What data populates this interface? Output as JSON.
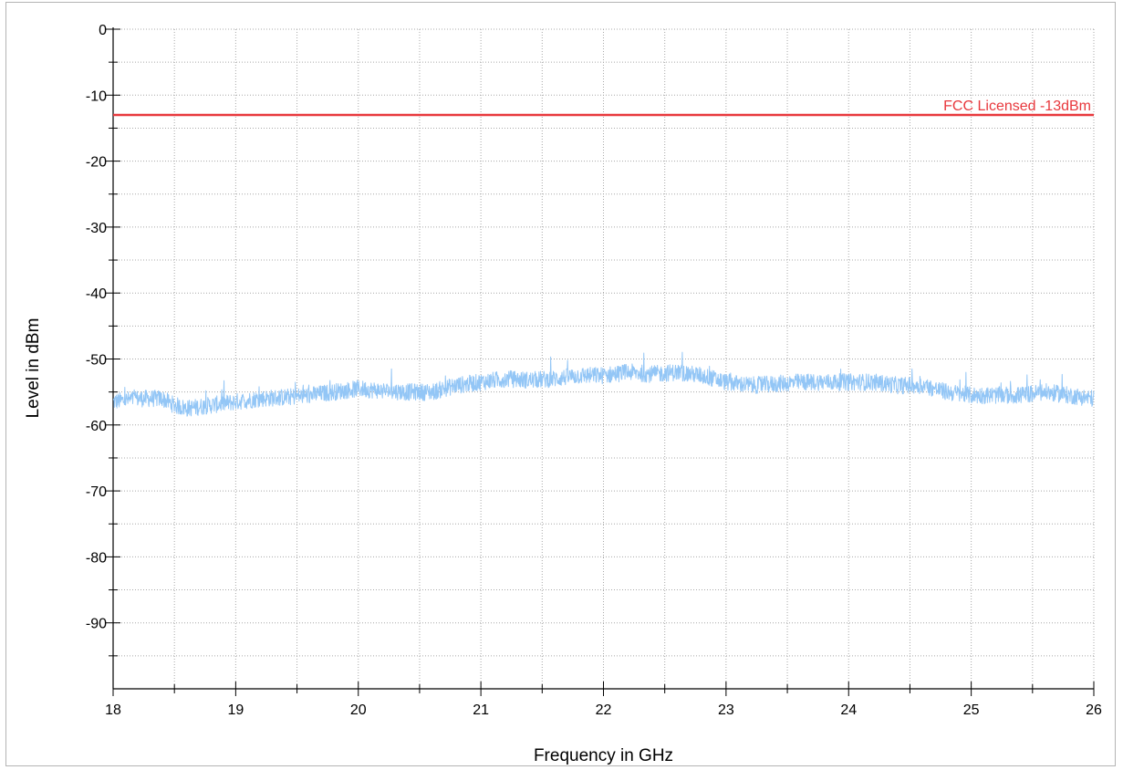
{
  "chart_data": {
    "type": "line",
    "xlabel": "Frequency in GHz",
    "ylabel": "Level in dBm",
    "xlim": [
      18,
      26
    ],
    "ylim": [
      -100,
      0
    ],
    "x_ticks": [
      18,
      19,
      20,
      21,
      22,
      23,
      24,
      25,
      26
    ],
    "y_ticks": [
      0,
      -10,
      -20,
      -30,
      -40,
      -50,
      -60,
      -70,
      -80,
      -90
    ],
    "x_tick_labels": [
      "18",
      "19",
      "20",
      "21",
      "22",
      "23",
      "24",
      "25",
      "26"
    ],
    "y_tick_labels": [
      "0",
      "-10",
      "-20",
      "-30",
      "-40",
      "-50",
      "-60",
      "-70",
      "-80",
      "-90"
    ],
    "grid": true,
    "limit_line": {
      "label": "FCC Licensed -13dBm",
      "y": -13,
      "color": "#e8383d"
    },
    "series": [
      {
        "color": "#93c6f6",
        "x": [
          18.0,
          18.2,
          18.4,
          18.5,
          18.6,
          18.8,
          19.0,
          19.2,
          19.4,
          19.6,
          19.8,
          20.0,
          20.2,
          20.4,
          20.6,
          20.8,
          21.0,
          21.2,
          21.4,
          21.6,
          21.8,
          22.0,
          22.2,
          22.4,
          22.6,
          22.8,
          23.0,
          23.2,
          23.4,
          23.6,
          23.8,
          24.0,
          24.2,
          24.4,
          24.6,
          24.8,
          25.0,
          25.2,
          25.4,
          25.6,
          25.8,
          26.0
        ],
        "y": [
          -56.5,
          -56.0,
          -56.0,
          -57.0,
          -57.5,
          -57.0,
          -56.5,
          -56.0,
          -55.8,
          -55.5,
          -55.0,
          -54.5,
          -54.8,
          -55.0,
          -55.0,
          -54.0,
          -53.5,
          -53.0,
          -53.2,
          -53.0,
          -52.5,
          -52.5,
          -52.0,
          -52.3,
          -52.0,
          -52.5,
          -53.5,
          -54.0,
          -53.8,
          -53.5,
          -53.5,
          -53.5,
          -53.5,
          -54.0,
          -54.0,
          -55.0,
          -55.5,
          -55.5,
          -55.5,
          -55.0,
          -55.5,
          -56.0
        ],
        "noise_band_db": 2.6
      }
    ]
  }
}
